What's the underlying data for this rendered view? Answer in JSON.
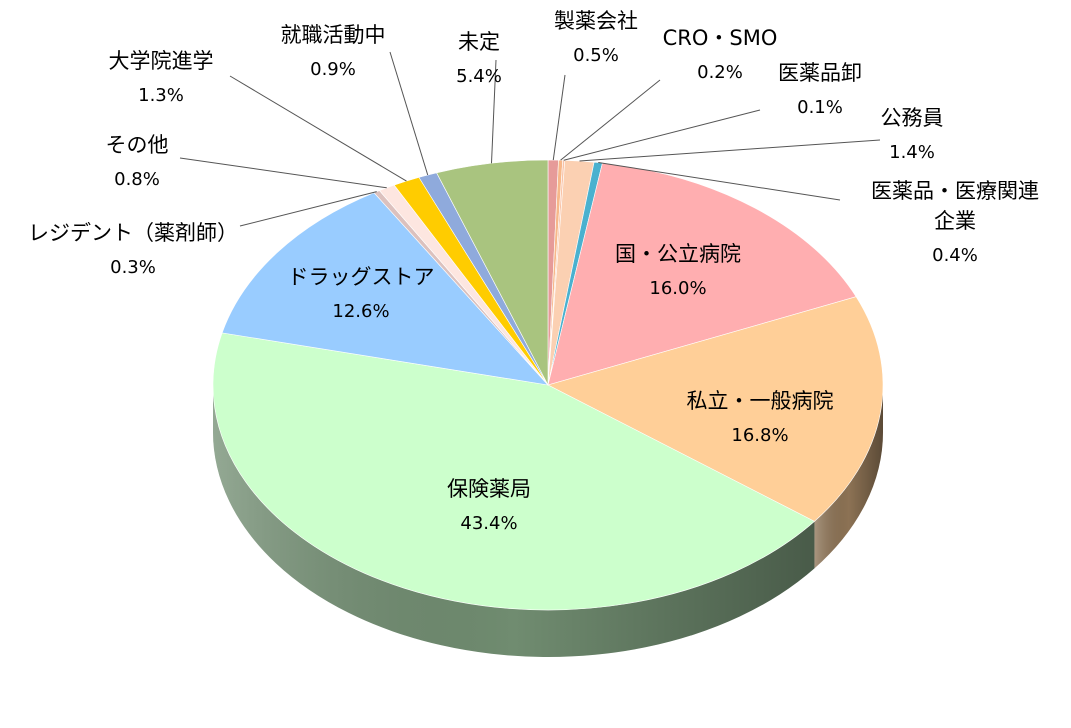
{
  "chart_data": {
    "type": "pie",
    "title": "",
    "labels": [
      "製薬会社",
      "CRO・SMO",
      "医薬品卸",
      "公務員",
      "医薬品・医療関連企業",
      "国・公立病院",
      "私立・一般病院",
      "保険薬局",
      "ドラッグストア",
      "レジデント（薬剤師）",
      "その他",
      "大学院進学",
      "就職活動中",
      "未定"
    ],
    "values": [
      0.5,
      0.2,
      0.1,
      1.4,
      0.4,
      16.0,
      16.8,
      43.4,
      12.6,
      0.3,
      0.8,
      1.3,
      0.9,
      5.4
    ],
    "value_labels": [
      "0.5%",
      "0.2%",
      "0.1%",
      "1.4%",
      "0.4%",
      "16.0%",
      "16.8%",
      "43.4%",
      "12.6%",
      "0.3%",
      "0.8%",
      "1.3%",
      "0.9%",
      "5.4%"
    ],
    "colors": [
      "#e69b99",
      "#f7b88a",
      "#f9c3a8",
      "#fbd0b2",
      "#4ab1cf",
      "#ffaeb0",
      "#ffcf98",
      "#ccffcc",
      "#99ccff",
      "#dcc1be",
      "#fde6e0",
      "#ffcc00",
      "#8faadc",
      "#a9c47f"
    ],
    "start_angle_deg": 0,
    "direction": "clockwise",
    "style": "3d-pie",
    "legend": "none",
    "label_lines": [
      {
        "label": "製薬会社",
        "name": "製薬会社",
        "value": "0.5%"
      },
      {
        "label": "CRO・SMO",
        "name": "CRO・SMO",
        "value": "0.2%"
      },
      {
        "label": "医薬品卸",
        "name": "医薬品卸",
        "value": "0.1%"
      },
      {
        "label": "公務員",
        "name": "公務員",
        "value": "1.4%"
      },
      {
        "label": "医薬品・医療関連企業",
        "name": "医薬品・医療関連",
        "name2": "企業",
        "value": "0.4%"
      },
      {
        "label": "国・公立病院",
        "name": "国・公立病院",
        "value": "16.0%"
      },
      {
        "label": "私立・一般病院",
        "name": "私立・一般病院",
        "value": "16.8%"
      },
      {
        "label": "保険薬局",
        "name": "保険薬局",
        "value": "43.4%"
      },
      {
        "label": "ドラッグストア",
        "name": "ドラッグストア",
        "value": "12.6%"
      },
      {
        "label": "レジデント（薬剤師）",
        "name": "レジデント（薬剤師）",
        "value": "0.3%"
      },
      {
        "label": "その他",
        "name": "その他",
        "value": "0.8%"
      },
      {
        "label": "大学院進学",
        "name": "大学院進学",
        "value": "1.3%"
      },
      {
        "label": "就職活動中",
        "name": "就職活動中",
        "value": "0.9%"
      },
      {
        "label": "未定",
        "name": "未定",
        "value": "5.4%"
      }
    ]
  }
}
